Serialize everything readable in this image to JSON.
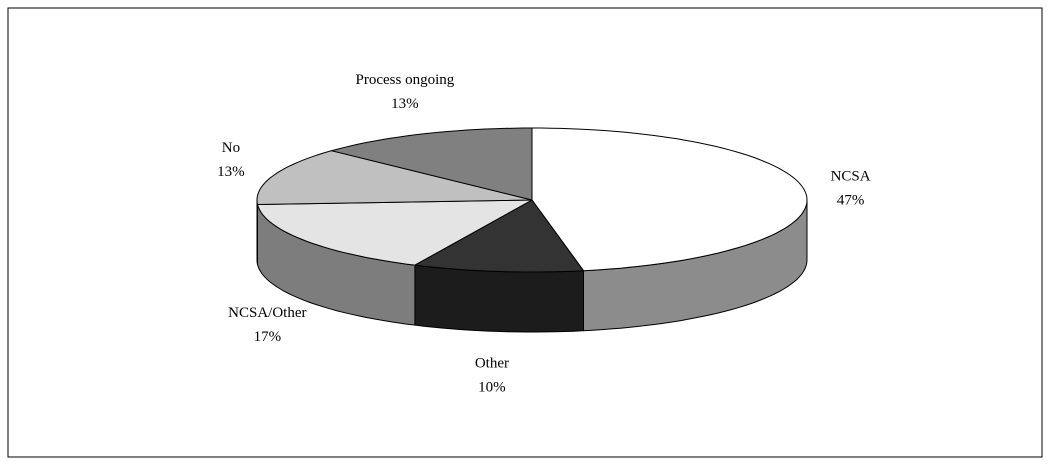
{
  "chart_data": {
    "type": "pie3d",
    "categories": [
      "NCSA",
      "Other",
      "NCSA/Other",
      "No",
      "Process ongoing"
    ],
    "values": [
      47,
      10,
      17,
      13,
      13
    ],
    "value_labels": [
      "47%",
      "10%",
      "17%",
      "13%",
      "13%"
    ],
    "colors": [
      "#ffffff",
      "#333333",
      "#e4e4e4",
      "#c0c0c0",
      "#808080"
    ]
  }
}
